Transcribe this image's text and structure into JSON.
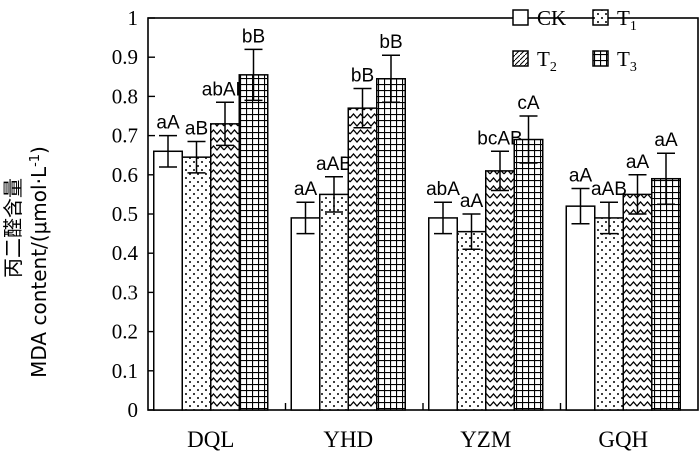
{
  "chart_data": {
    "type": "bar",
    "ylabel_cn": "丙二醛含量",
    "ylabel_en": "MDA content/(μmol·L",
    "ylabel_sup": "-1",
    "ylabel_end": ")",
    "ylim": [
      0,
      1
    ],
    "yticks": [
      "0",
      "0.1",
      "0.2",
      "0.3",
      "0.4",
      "0.5",
      "0.6",
      "0.7",
      "0.8",
      "0.9",
      "1"
    ],
    "categories": [
      "DQL",
      "YHD",
      "YZM",
      "GQH"
    ],
    "series": [
      {
        "name": "CK",
        "sub": "",
        "pattern": "white",
        "values": [
          0.66,
          0.49,
          0.49,
          0.52
        ],
        "errors": [
          0.04,
          0.04,
          0.04,
          0.045
        ],
        "labels": [
          "aA",
          "aA",
          "abA",
          "aA"
        ]
      },
      {
        "name": "T",
        "sub": "1",
        "pattern": "dots",
        "values": [
          0.645,
          0.55,
          0.455,
          0.49
        ],
        "errors": [
          0.04,
          0.045,
          0.045,
          0.04
        ],
        "labels": [
          "aB",
          "aAB",
          "aA",
          "aAB"
        ]
      },
      {
        "name": "T",
        "sub": "2",
        "pattern": "zigzag",
        "values": [
          0.73,
          0.77,
          0.61,
          0.55
        ],
        "errors": [
          0.055,
          0.05,
          0.05,
          0.05
        ],
        "labels": [
          "abAB",
          "bB",
          "bcAB",
          "aA"
        ]
      },
      {
        "name": "T",
        "sub": "3",
        "pattern": "grid",
        "values": [
          0.855,
          0.845,
          0.69,
          0.59
        ],
        "errors": [
          0.065,
          0.06,
          0.06,
          0.065
        ],
        "labels": [
          "bB",
          "bB",
          "cA",
          "aA"
        ]
      }
    ],
    "grid": false,
    "legend": "top-right"
  }
}
